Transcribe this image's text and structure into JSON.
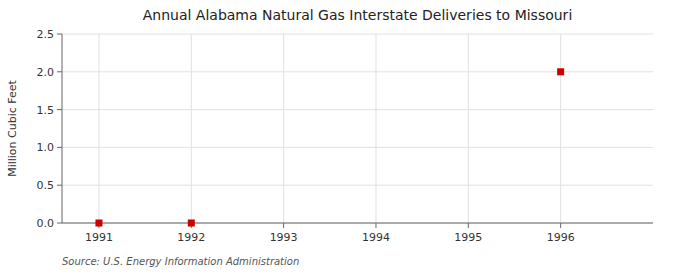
{
  "chart_data": {
    "type": "scatter",
    "title": "Annual Alabama Natural Gas Interstate Deliveries to Missouri",
    "y_label": "Million Cubic Feet",
    "source": "Source: U.S. Energy Information Administration",
    "x": [
      1991,
      1992,
      1996
    ],
    "values": [
      0.0,
      0.0,
      2.0
    ],
    "color": "#cc0000",
    "marker": "square",
    "xlim": [
      1990.6,
      1997.0
    ],
    "ylim": [
      0.0,
      2.5
    ],
    "xticks": [
      1991,
      1992,
      1993,
      1994,
      1995,
      1996
    ],
    "yticks": [
      {
        "value": 0,
        "label": "0.0"
      },
      0.5,
      {
        "value": 1,
        "label": "1.0"
      },
      1.5,
      {
        "value": 2,
        "label": "2.0"
      },
      2.5
    ],
    "grid": true
  }
}
